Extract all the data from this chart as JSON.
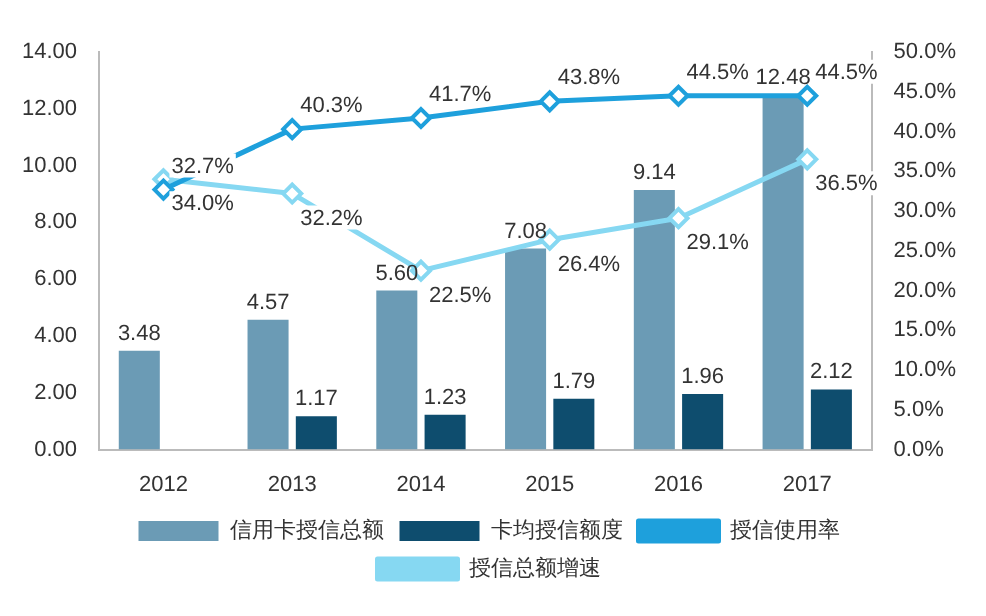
{
  "chart_data": {
    "type": "bar",
    "categories": [
      "2012",
      "2013",
      "2014",
      "2015",
      "2016",
      "2017"
    ],
    "series": [
      {
        "name": "信用卡授信总额",
        "color": "#6b9bb5",
        "values": [
          3.48,
          4.57,
          5.6,
          7.08,
          9.14,
          12.48
        ],
        "value_labels": [
          "3.48",
          "4.57",
          "5.60",
          "7.08",
          "9.14",
          "12.48"
        ]
      },
      {
        "name": "卡均授信额度",
        "color": "#0e4d6e",
        "values": [
          null,
          1.17,
          1.23,
          1.79,
          1.96,
          2.12
        ],
        "value_labels": [
          null,
          "1.17",
          "1.23",
          "1.79",
          "1.96",
          "2.12"
        ]
      },
      {
        "name": "授信使用率",
        "type": "line",
        "axis": "y2",
        "color": "#1ea0dc",
        "values": [
          32.7,
          40.3,
          41.7,
          43.8,
          44.5,
          44.5
        ],
        "value_labels": [
          "32.7%",
          "40.3%",
          "41.7%",
          "43.8%",
          "44.5%",
          "44.5%"
        ]
      },
      {
        "name": "授信总额增速",
        "type": "line",
        "axis": "y2",
        "color": "#86d8f2",
        "values": [
          34.0,
          32.2,
          22.5,
          26.4,
          29.1,
          36.5
        ],
        "value_labels": [
          "34.0%",
          "32.2%",
          "22.5%",
          "26.4%",
          "29.1%",
          "36.5%"
        ]
      }
    ],
    "ylim": [
      0,
      14
    ],
    "yticks": [
      {
        "value": 0,
        "label": "0.00"
      },
      {
        "value": 2,
        "label": "2.00"
      },
      {
        "value": 4,
        "label": "4.00"
      },
      {
        "value": 6,
        "label": "6.00"
      },
      {
        "value": 8,
        "label": "8.00"
      },
      {
        "value": 10,
        "label": "10.00"
      },
      {
        "value": 12,
        "label": "12.00"
      },
      {
        "value": 14,
        "label": "14.00"
      }
    ],
    "y2lim": [
      0,
      50
    ],
    "y2ticks": [
      {
        "value": 0,
        "label": "0.0%"
      },
      {
        "value": 5,
        "label": "5.0%"
      },
      {
        "value": 10,
        "label": "10.0%"
      },
      {
        "value": 15,
        "label": "15.0%"
      },
      {
        "value": 20,
        "label": "20.0%"
      },
      {
        "value": 25,
        "label": "25.0%"
      },
      {
        "value": 30,
        "label": "30.0%"
      },
      {
        "value": 35,
        "label": "35.0%"
      },
      {
        "value": 40,
        "label": "40.0%"
      },
      {
        "value": 45,
        "label": "45.0%"
      },
      {
        "value": 50,
        "label": "50.0%"
      }
    ],
    "marker": "diamond",
    "line_style": "solid",
    "legend": "bottom",
    "grid": false
  }
}
